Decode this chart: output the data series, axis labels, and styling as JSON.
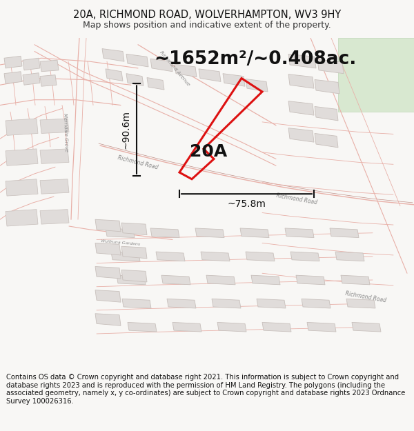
{
  "title": "20A, RICHMOND ROAD, WOLVERHAMPTON, WV3 9HY",
  "subtitle": "Map shows position and indicative extent of the property.",
  "area_text": "~1652m²/~0.408ac.",
  "label_20A": "20A",
  "dim_vertical": "~90.6m",
  "dim_horizontal": "~75.8m",
  "footer": "Contains OS data © Crown copyright and database right 2021. This information is subject to Crown copyright and database rights 2023 and is reproduced with the permission of HM Land Registry. The polygons (including the associated geometry, namely x, y co-ordinates) are subject to Crown copyright and database rights 2023 Ordnance Survey 100026316.",
  "bg_color": "#f8f7f5",
  "map_bg": "#f8f7f5",
  "road_line_color": "#e8b0a8",
  "road_outline_color": "#d08878",
  "building_fill": "#e0dcda",
  "building_edge": "#c8c0bc",
  "highlight_color": "#dd1111",
  "green_fill": "#d8e8d0",
  "green_edge": "#c0d8b8",
  "dim_color": "#111111",
  "text_color": "#888888",
  "title_fontsize": 10.5,
  "subtitle_fontsize": 9,
  "area_fontsize": 20,
  "label_fontsize": 18,
  "dim_fontsize": 10,
  "footer_fontsize": 7.2,
  "map_road_lw": 0.8,
  "prop_lw": 2.2
}
